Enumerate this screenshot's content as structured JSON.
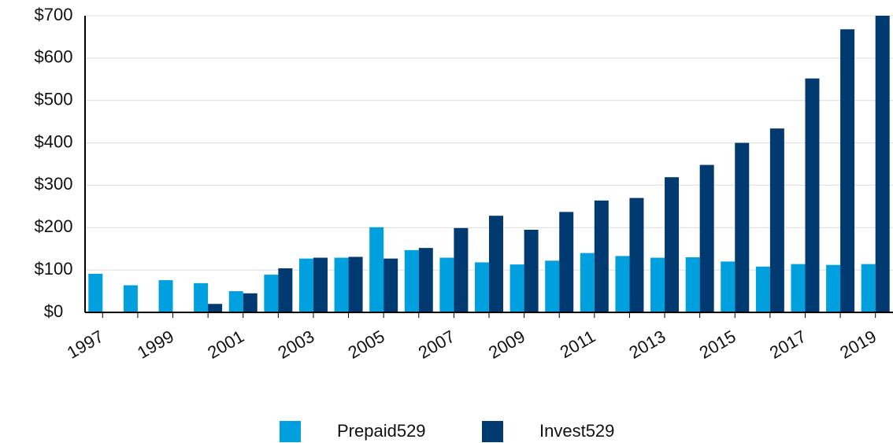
{
  "chart_data": {
    "type": "bar",
    "categories": [
      "1997",
      null,
      "1999",
      null,
      "2001",
      null,
      "2003",
      null,
      "2005",
      null,
      "2007",
      null,
      "2009",
      null,
      "2011",
      null,
      "2013",
      null,
      "2015",
      null,
      "2017",
      null,
      "2019"
    ],
    "series": [
      {
        "name": "Prepaid529",
        "color": "#00a0df",
        "values": [
          91,
          64,
          76,
          69,
          50,
          89,
          127,
          129,
          201,
          147,
          129,
          118,
          113,
          122,
          140,
          133,
          129,
          130,
          120,
          108,
          114,
          112,
          114
        ]
      },
      {
        "name": "Invest529",
        "color": "#003a70",
        "values": [
          0,
          0,
          0,
          20,
          45,
          104,
          129,
          131,
          127,
          152,
          199,
          228,
          195,
          237,
          264,
          270,
          319,
          348,
          400,
          434,
          552,
          668,
          700
        ]
      }
    ],
    "ylim": [
      0,
      700
    ],
    "yticks": [
      {
        "value": 0,
        "label": "$0"
      },
      {
        "value": 100,
        "label": "$100"
      },
      {
        "value": 200,
        "label": "$200"
      },
      {
        "value": 300,
        "label": "$300"
      },
      {
        "value": 400,
        "label": "$400"
      },
      {
        "value": 500,
        "label": "$500"
      },
      {
        "value": 600,
        "label": "$600"
      },
      {
        "value": 700,
        "label": "$700"
      }
    ],
    "grid": true,
    "legend": "bottom"
  }
}
